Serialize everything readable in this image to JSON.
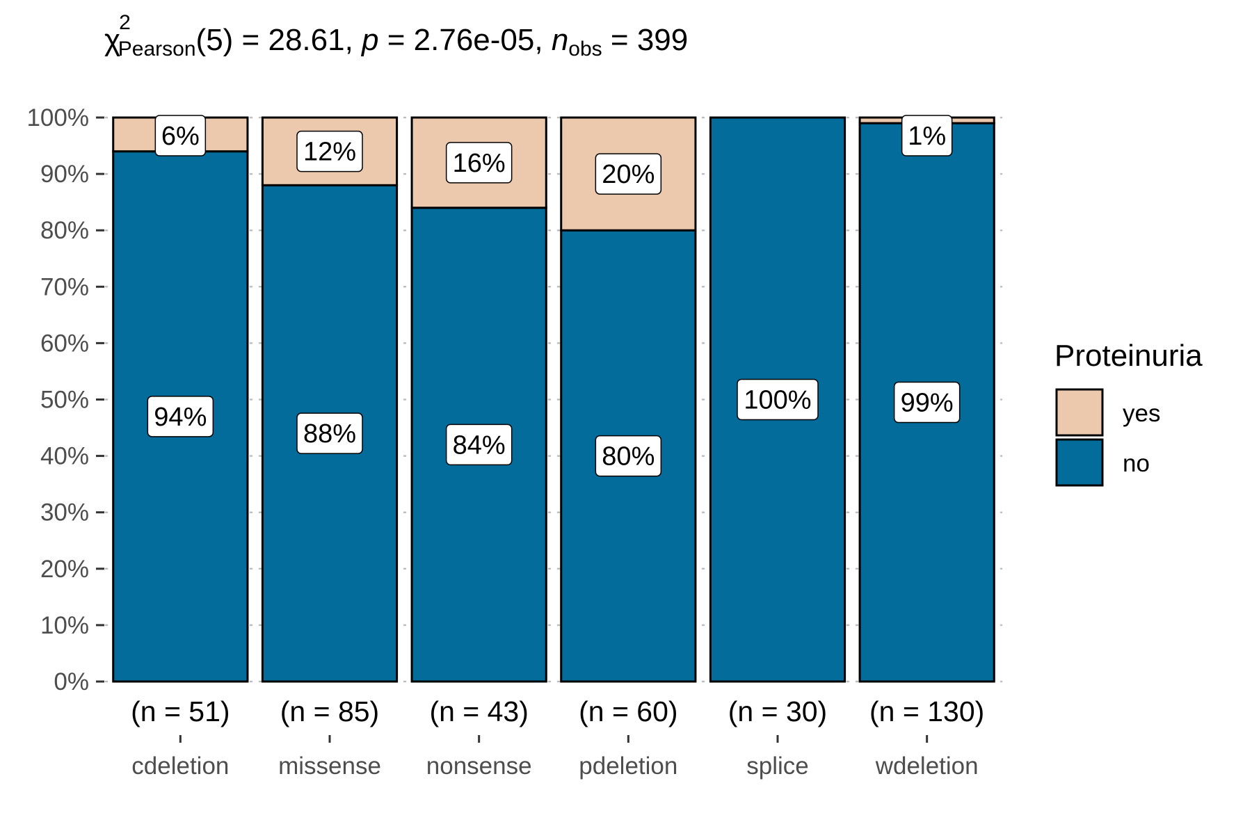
{
  "chart_data": {
    "type": "bar",
    "stacked": true,
    "subtitle": {
      "chi_symbol": "χ",
      "chi_sup": "2",
      "chi_sub": "Pearson",
      "df_text": "(5) = 28.61, ",
      "p_symbol": "p",
      "p_text": " = 2.76e-05, ",
      "n_symbol": "n",
      "n_sub": "obs",
      "n_text": " = 399"
    },
    "categories": [
      "cdeletion",
      "missense",
      "nonsense",
      "pdeletion",
      "splice",
      "wdeletion"
    ],
    "counts": [
      "(n = 51)",
      "(n = 85)",
      "(n = 43)",
      "(n = 60)",
      "(n = 30)",
      "(n = 130)"
    ],
    "series": [
      {
        "name": "no",
        "color": "#046c9a",
        "values": [
          94,
          88,
          84,
          80,
          100,
          99
        ],
        "labels": [
          "94%",
          "88%",
          "84%",
          "80%",
          "100%",
          "99%"
        ]
      },
      {
        "name": "yes",
        "color": "#ecc9ad",
        "values": [
          6,
          12,
          16,
          20,
          0,
          1
        ],
        "labels": [
          "6%",
          "12%",
          "16%",
          "20%",
          "",
          "1%"
        ]
      }
    ],
    "y_ticks": [
      "0%",
      "10%",
      "20%",
      "30%",
      "40%",
      "50%",
      "60%",
      "70%",
      "80%",
      "90%",
      "100%"
    ],
    "ylim": [
      0,
      100
    ],
    "grid": "horizontal dotted",
    "legend": {
      "title": "Proteinuria",
      "items": [
        "yes",
        "no"
      ],
      "placement": "right"
    }
  }
}
